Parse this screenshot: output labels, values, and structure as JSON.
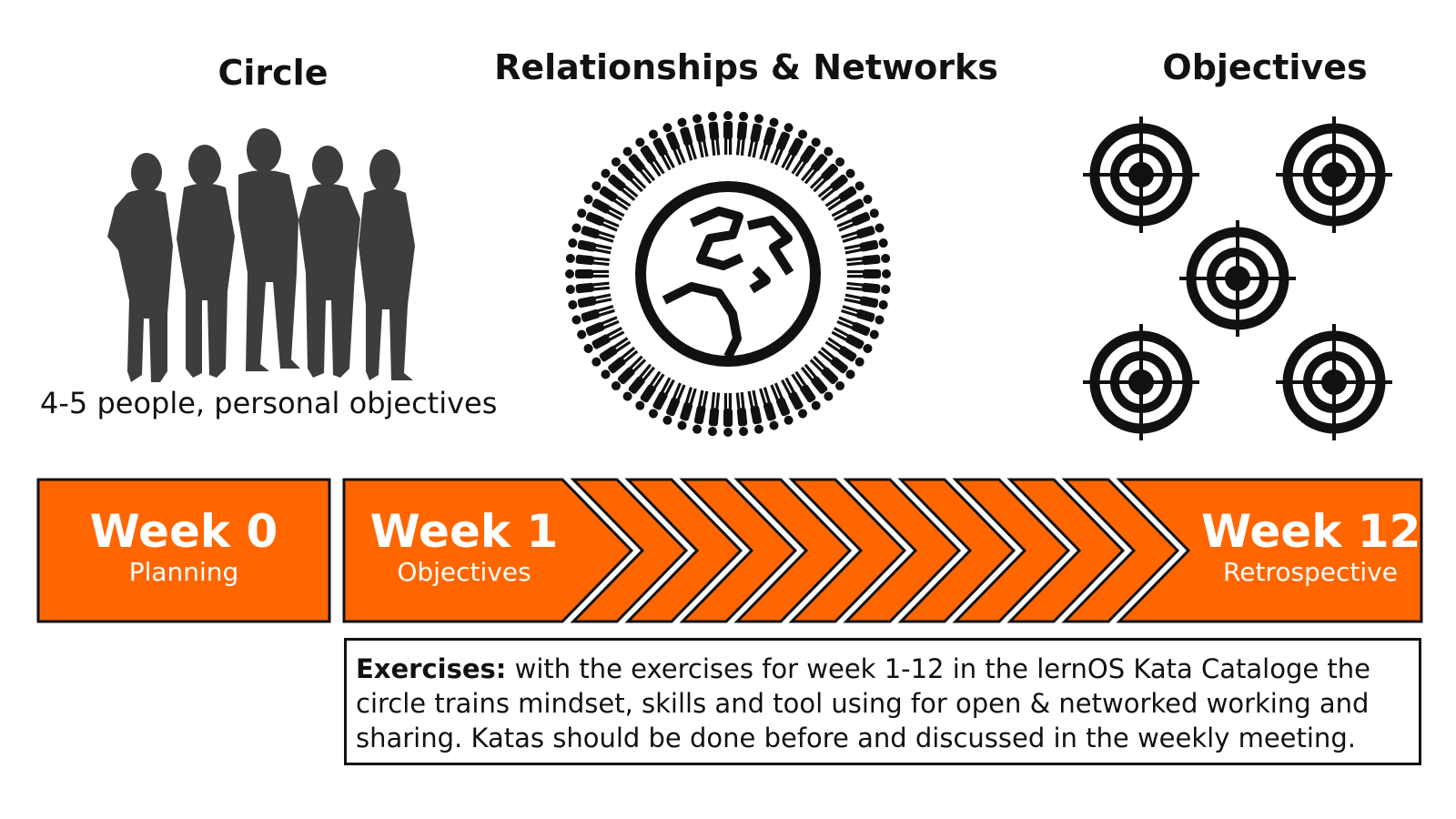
{
  "sections": {
    "circle": {
      "title": "Circle",
      "caption": "4-5 people, personal objectives",
      "icon": "group-silhouette-icon"
    },
    "network": {
      "title": "Relationships & Networks",
      "icon": "globe-with-people-ring-icon"
    },
    "objectives": {
      "title": "Objectives",
      "icon": "target-icon"
    }
  },
  "timeline": {
    "week0": {
      "label": "Week 0",
      "sub": "Planning"
    },
    "week1": {
      "label": "Week 1",
      "sub": "Objectives"
    },
    "week12": {
      "label": "Week 12",
      "sub": "Retrospective"
    }
  },
  "exercises": {
    "label": "Exercises:",
    "text": " with the exercises for week 1-12 in the lernOS Kata Cataloge the circle trains mindset, skills and tool using for open & networked working and sharing. Katas should be done before and discussed in the weekly meeting."
  },
  "colors": {
    "accent": "#FF6600",
    "ink": "#111111",
    "silhouette": "#3d3d3d"
  }
}
